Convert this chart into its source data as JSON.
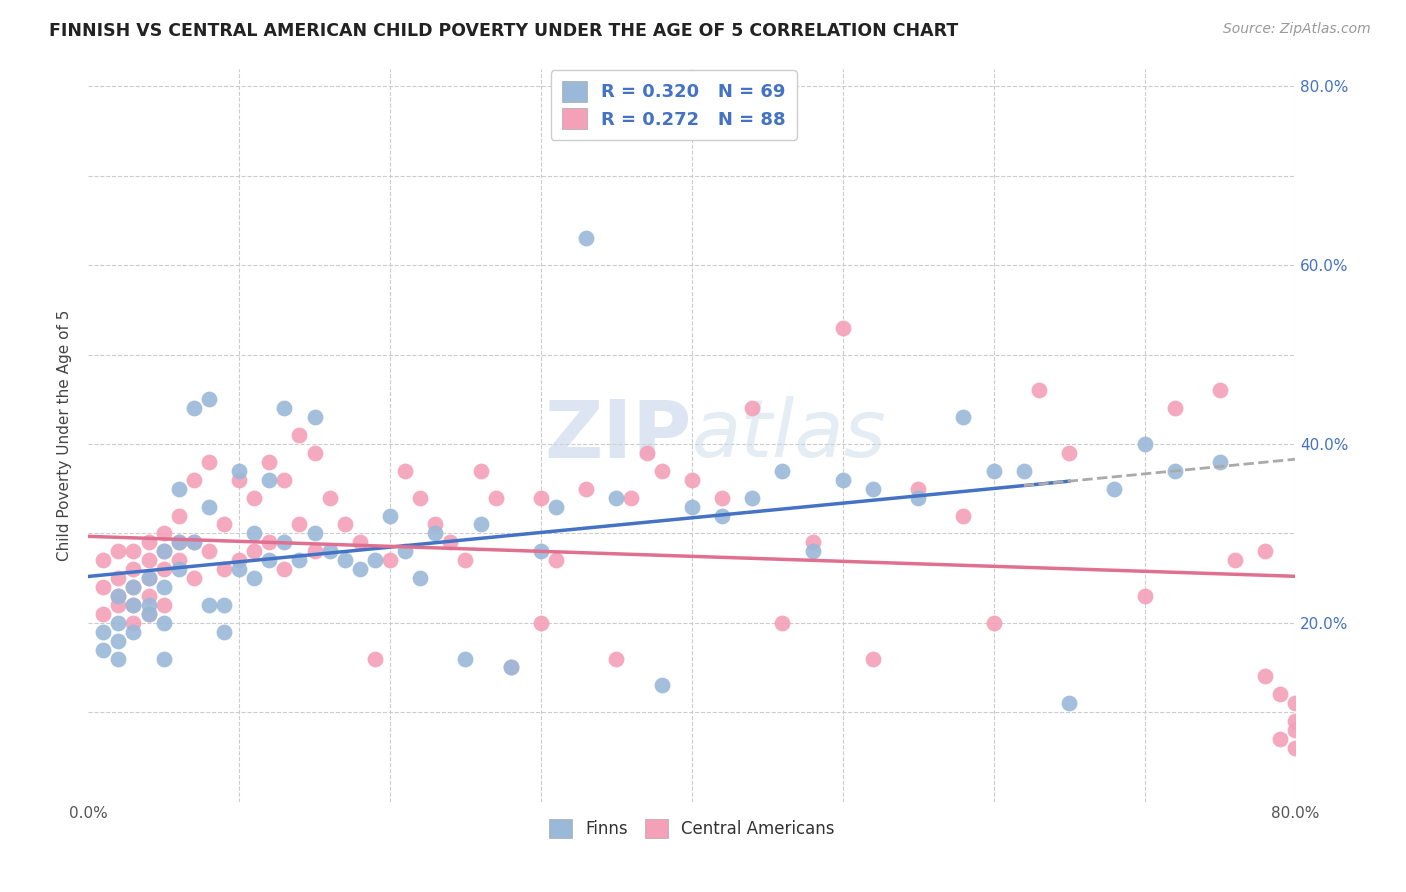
{
  "title": "FINNISH VS CENTRAL AMERICAN CHILD POVERTY UNDER THE AGE OF 5 CORRELATION CHART",
  "source": "Source: ZipAtlas.com",
  "ylabel": "Child Poverty Under the Age of 5",
  "xlim": [
    0.0,
    0.8
  ],
  "ylim": [
    0.0,
    0.82
  ],
  "xtick_labels": [
    "0.0%",
    "",
    "",
    "",
    "",
    "",
    "",
    "",
    "80.0%"
  ],
  "ytick_labels_right": [
    "",
    "20.0%",
    "",
    "40.0%",
    "",
    "60.0%",
    "",
    "80.0%"
  ],
  "legend_labels": [
    "Finns",
    "Central Americans"
  ],
  "blue_line_color": "#4472c4",
  "pink_line_color": "#e07090",
  "blue_dot_color": "#9ab8d8",
  "pink_dot_color": "#f4a0b8",
  "r_blue": 0.32,
  "n_blue": 69,
  "r_pink": 0.272,
  "n_pink": 88,
  "watermark_zip": "ZIP",
  "watermark_atlas": "atlas",
  "background_color": "#ffffff",
  "grid_color": "#cccccc",
  "legend_text_color": "#4472c4",
  "title_color": "#222222",
  "finns_x": [
    0.01,
    0.01,
    0.02,
    0.02,
    0.02,
    0.02,
    0.03,
    0.03,
    0.03,
    0.04,
    0.04,
    0.04,
    0.05,
    0.05,
    0.05,
    0.05,
    0.06,
    0.06,
    0.06,
    0.07,
    0.07,
    0.08,
    0.08,
    0.08,
    0.09,
    0.09,
    0.1,
    0.1,
    0.11,
    0.11,
    0.12,
    0.12,
    0.13,
    0.13,
    0.14,
    0.15,
    0.15,
    0.16,
    0.17,
    0.18,
    0.19,
    0.2,
    0.21,
    0.22,
    0.23,
    0.25,
    0.26,
    0.28,
    0.3,
    0.31,
    0.33,
    0.35,
    0.38,
    0.4,
    0.42,
    0.44,
    0.46,
    0.48,
    0.5,
    0.52,
    0.55,
    0.58,
    0.6,
    0.62,
    0.65,
    0.68,
    0.7,
    0.72,
    0.75
  ],
  "finns_y": [
    0.19,
    0.17,
    0.23,
    0.2,
    0.18,
    0.16,
    0.22,
    0.24,
    0.19,
    0.25,
    0.22,
    0.21,
    0.28,
    0.24,
    0.2,
    0.16,
    0.35,
    0.29,
    0.26,
    0.44,
    0.29,
    0.45,
    0.33,
    0.22,
    0.22,
    0.19,
    0.37,
    0.26,
    0.3,
    0.25,
    0.36,
    0.27,
    0.44,
    0.29,
    0.27,
    0.43,
    0.3,
    0.28,
    0.27,
    0.26,
    0.27,
    0.32,
    0.28,
    0.25,
    0.3,
    0.16,
    0.31,
    0.15,
    0.28,
    0.33,
    0.63,
    0.34,
    0.13,
    0.33,
    0.32,
    0.34,
    0.37,
    0.28,
    0.36,
    0.35,
    0.34,
    0.43,
    0.37,
    0.37,
    0.11,
    0.35,
    0.4,
    0.37,
    0.38
  ],
  "central_x": [
    0.01,
    0.01,
    0.01,
    0.02,
    0.02,
    0.02,
    0.02,
    0.03,
    0.03,
    0.03,
    0.03,
    0.03,
    0.04,
    0.04,
    0.04,
    0.04,
    0.04,
    0.05,
    0.05,
    0.05,
    0.05,
    0.06,
    0.06,
    0.06,
    0.07,
    0.07,
    0.07,
    0.08,
    0.08,
    0.09,
    0.09,
    0.1,
    0.1,
    0.11,
    0.11,
    0.12,
    0.12,
    0.13,
    0.13,
    0.14,
    0.14,
    0.15,
    0.15,
    0.16,
    0.17,
    0.18,
    0.19,
    0.2,
    0.21,
    0.22,
    0.23,
    0.24,
    0.25,
    0.26,
    0.27,
    0.28,
    0.3,
    0.3,
    0.31,
    0.33,
    0.35,
    0.36,
    0.37,
    0.38,
    0.4,
    0.42,
    0.44,
    0.46,
    0.48,
    0.5,
    0.52,
    0.55,
    0.58,
    0.6,
    0.63,
    0.65,
    0.7,
    0.72,
    0.75,
    0.76,
    0.78,
    0.78,
    0.79,
    0.79,
    0.8,
    0.8,
    0.8,
    0.8
  ],
  "central_y": [
    0.24,
    0.21,
    0.27,
    0.25,
    0.22,
    0.28,
    0.23,
    0.26,
    0.24,
    0.28,
    0.22,
    0.2,
    0.29,
    0.27,
    0.25,
    0.21,
    0.23,
    0.3,
    0.28,
    0.26,
    0.22,
    0.32,
    0.29,
    0.27,
    0.36,
    0.29,
    0.25,
    0.38,
    0.28,
    0.31,
    0.26,
    0.36,
    0.27,
    0.34,
    0.28,
    0.38,
    0.29,
    0.36,
    0.26,
    0.41,
    0.31,
    0.39,
    0.28,
    0.34,
    0.31,
    0.29,
    0.16,
    0.27,
    0.37,
    0.34,
    0.31,
    0.29,
    0.27,
    0.37,
    0.34,
    0.15,
    0.2,
    0.34,
    0.27,
    0.35,
    0.16,
    0.34,
    0.39,
    0.37,
    0.36,
    0.34,
    0.44,
    0.2,
    0.29,
    0.53,
    0.16,
    0.35,
    0.32,
    0.2,
    0.46,
    0.39,
    0.23,
    0.44,
    0.46,
    0.27,
    0.14,
    0.28,
    0.07,
    0.12,
    0.08,
    0.09,
    0.11,
    0.06
  ]
}
